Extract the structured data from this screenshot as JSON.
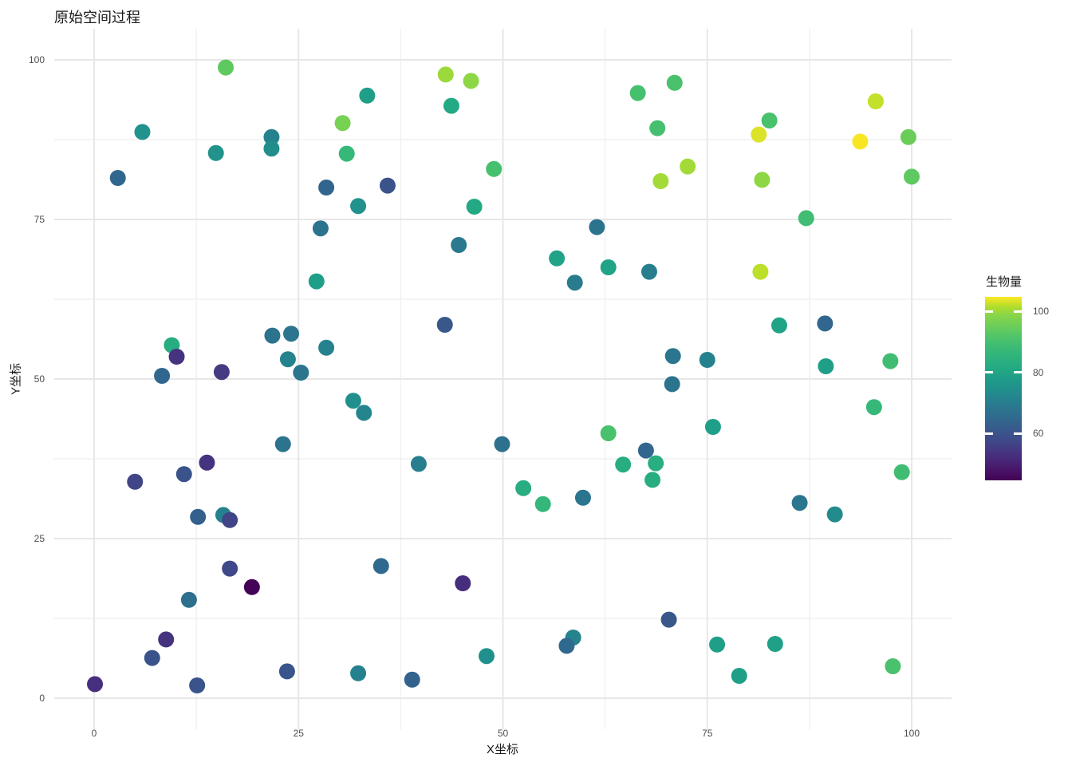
{
  "title": "原始空间过程",
  "colors": {
    "background": "#ffffff",
    "grid_major": "#e7e7e7",
    "grid_minor": "#f1f1f1",
    "tick_label": "#4d4d4d",
    "text": "#1a1a1a",
    "viridis_stops": [
      "#440154",
      "#471365",
      "#482475",
      "#463480",
      "#414487",
      "#3b528b",
      "#355f8d",
      "#2f6c8e",
      "#2a788e",
      "#25848e",
      "#21918c",
      "#1e9c89",
      "#22a884",
      "#2ab07f",
      "#35b779",
      "#44bf70",
      "#58c765",
      "#70cf57",
      "#89d548",
      "#b5de2b",
      "#fde725"
    ]
  },
  "chart_data": {
    "type": "scatter",
    "title": "原始空间过程",
    "xlabel": "X坐标",
    "ylabel": "Y坐标",
    "xlim": [
      -5,
      105
    ],
    "ylim": [
      -5,
      105
    ],
    "x_ticks": [
      0,
      25,
      50,
      75,
      100
    ],
    "y_ticks": [
      0,
      25,
      50,
      75,
      100
    ],
    "x_minor": [
      12.5,
      37.5,
      62.5,
      87.5
    ],
    "y_minor": [
      12.5,
      37.5,
      62.5,
      87.5
    ],
    "grid": "on",
    "legend": {
      "title": "生物量",
      "position": "right",
      "type": "colorbar",
      "ticks": [
        60,
        80,
        100
      ],
      "domain": [
        44.7,
        104.7
      ],
      "colormap": "viridis"
    },
    "points": [
      [
        16.1,
        98.8,
        93.5
      ],
      [
        5.9,
        88.7,
        75
      ],
      [
        2.9,
        81.5,
        64.5
      ],
      [
        14.9,
        85.4,
        75
      ],
      [
        21.7,
        87.9,
        71
      ],
      [
        21.7,
        86.1,
        74
      ],
      [
        33.4,
        94.4,
        78.5
      ],
      [
        30.4,
        90.1,
        96.5
      ],
      [
        30.9,
        85.3,
        87
      ],
      [
        28.4,
        80,
        64
      ],
      [
        32.3,
        77.1,
        75
      ],
      [
        27.7,
        73.6,
        67.5
      ],
      [
        43,
        97.7,
        100
      ],
      [
        46.1,
        96.7,
        99
      ],
      [
        43.7,
        92.8,
        81
      ],
      [
        48.9,
        82.9,
        90
      ],
      [
        35.9,
        80.3,
        60
      ],
      [
        46.5,
        77,
        81
      ],
      [
        44.6,
        71,
        69
      ],
      [
        61.5,
        73.8,
        67.5
      ],
      [
        56.6,
        68.9,
        79.5
      ],
      [
        62.9,
        67.5,
        79.5
      ],
      [
        66.5,
        94.8,
        90
      ],
      [
        71,
        96.4,
        90.5
      ],
      [
        68.9,
        89.3,
        90
      ],
      [
        69.3,
        81,
        100.5
      ],
      [
        72.6,
        83.3,
        100.5
      ],
      [
        82.6,
        90.5,
        90.5
      ],
      [
        81.3,
        88.3,
        103.3
      ],
      [
        95.6,
        93.5,
        102.3
      ],
      [
        93.7,
        87.2,
        104.5
      ],
      [
        99.6,
        87.9,
        95
      ],
      [
        81.7,
        81.2,
        99
      ],
      [
        100,
        81.7,
        93.5
      ],
      [
        87.1,
        75.2,
        89
      ],
      [
        81.5,
        66.8,
        102
      ],
      [
        27.2,
        65.3,
        78.5
      ],
      [
        9.5,
        55.3,
        82.5
      ],
      [
        10.1,
        53.5,
        53.5
      ],
      [
        8.3,
        50.5,
        64.5
      ],
      [
        15.6,
        51.1,
        55
      ],
      [
        21.8,
        56.8,
        67.5
      ],
      [
        24.1,
        57.1,
        68
      ],
      [
        28.4,
        54.9,
        71
      ],
      [
        23.7,
        53.1,
        71.5
      ],
      [
        25.3,
        51,
        68
      ],
      [
        31.7,
        46.6,
        74.5
      ],
      [
        33,
        44.7,
        72
      ],
      [
        23.1,
        39.8,
        67.5
      ],
      [
        13.8,
        36.9,
        53.5
      ],
      [
        11,
        35.1,
        60
      ],
      [
        5,
        33.9,
        57
      ],
      [
        58.8,
        65.1,
        69.5
      ],
      [
        67.9,
        66.8,
        70.5
      ],
      [
        42.9,
        58.5,
        61
      ],
      [
        70.8,
        53.6,
        68
      ],
      [
        70.7,
        49.2,
        67.5
      ],
      [
        62.9,
        41.5,
        90.5
      ],
      [
        49.9,
        39.8,
        67
      ],
      [
        67.5,
        38.8,
        64.5
      ],
      [
        39.7,
        36.7,
        70.5
      ],
      [
        64.7,
        36.6,
        82.5
      ],
      [
        68.7,
        36.8,
        83
      ],
      [
        68.3,
        34.2,
        82.5
      ],
      [
        52.5,
        32.9,
        82.5
      ],
      [
        54.9,
        30.4,
        86.5
      ],
      [
        59.8,
        31.4,
        68
      ],
      [
        83.8,
        58.4,
        79.5
      ],
      [
        89.4,
        58.7,
        64.5
      ],
      [
        75,
        53,
        71
      ],
      [
        89.5,
        52,
        78.5
      ],
      [
        97.4,
        52.8,
        89
      ],
      [
        95.4,
        45.6,
        87
      ],
      [
        75.7,
        42.5,
        78.5
      ],
      [
        98.8,
        35.4,
        89
      ],
      [
        86.3,
        30.6,
        68
      ],
      [
        90.6,
        28.8,
        73
      ],
      [
        12.7,
        28.4,
        63
      ],
      [
        15.8,
        28.7,
        71
      ],
      [
        16.6,
        27.9,
        57
      ],
      [
        16.6,
        20.3,
        57.5
      ],
      [
        19.3,
        17.4,
        45
      ],
      [
        11.6,
        15.4,
        66.5
      ],
      [
        8.8,
        9.2,
        53.5
      ],
      [
        7.1,
        6.3,
        60
      ],
      [
        0.1,
        2.2,
        53
      ],
      [
        12.6,
        2,
        60
      ],
      [
        23.6,
        4.2,
        60.5
      ],
      [
        32.3,
        3.9,
        71
      ],
      [
        35.1,
        20.7,
        65
      ],
      [
        45.1,
        18,
        52.5
      ],
      [
        48,
        6.6,
        74.5
      ],
      [
        38.9,
        2.9,
        63.5
      ],
      [
        58.6,
        9.5,
        71.5
      ],
      [
        57.8,
        8.2,
        65
      ],
      [
        70.3,
        12.3,
        61
      ],
      [
        76.2,
        8.4,
        78.5
      ],
      [
        83.3,
        8.5,
        79
      ],
      [
        78.9,
        3.5,
        78.5
      ],
      [
        97.7,
        5,
        90.5
      ]
    ]
  }
}
